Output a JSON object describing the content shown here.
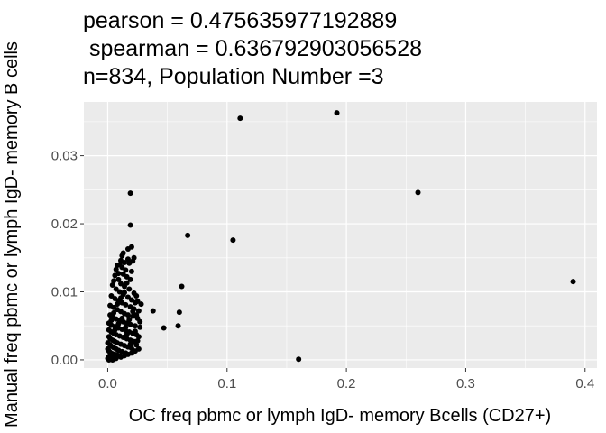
{
  "chart_data": {
    "type": "scatter",
    "title_lines": [
      "pearson = 0.475635977192889",
      " spearman = 0.636792903056528",
      "n=834, Population Number =3"
    ],
    "xlabel": "OC freq pbmc or lymph IgD- memory Bcells (CD27+)",
    "ylabel": "Manual freq pbmc or lymph IgD- memory B cells",
    "x_ticks": [
      "0.0",
      "0.1",
      "0.2",
      "0.3",
      "0.4"
    ],
    "y_ticks": [
      "0.00",
      "0.01",
      "0.02",
      "0.03"
    ],
    "xlim": [
      -0.02,
      0.41
    ],
    "ylim": [
      -0.0012,
      0.0379
    ],
    "grid": true,
    "panel_color": "#ebebeb",
    "grid_color": "#ffffff",
    "point_color": "#000000",
    "points": [
      [
        0.39,
        0.0115
      ],
      [
        0.26,
        0.0246
      ],
      [
        0.192,
        0.0363
      ],
      [
        0.16,
        0.0001
      ],
      [
        0.111,
        0.0355
      ],
      [
        0.105,
        0.0176
      ],
      [
        0.067,
        0.0183
      ],
      [
        0.062,
        0.0108
      ],
      [
        0.06,
        0.007
      ],
      [
        0.059,
        0.005
      ],
      [
        0.047,
        0.0047
      ],
      [
        0.038,
        0.0072
      ],
      [
        0.019,
        0.0245
      ],
      [
        0.019,
        0.0198
      ],
      [
        0.02,
        0.0166
      ],
      [
        0.017,
        0.0163
      ],
      [
        0.013,
        0.0157
      ],
      [
        0.012,
        0.0153
      ],
      [
        0.022,
        0.015
      ],
      [
        0.021,
        0.0145
      ],
      [
        0.018,
        0.0142
      ],
      [
        0.01,
        0.014
      ],
      [
        0.012,
        0.0136
      ],
      [
        0.015,
        0.0132
      ],
      [
        0.02,
        0.013
      ],
      [
        0.008,
        0.0139
      ],
      [
        0.013,
        0.0126
      ],
      [
        0.016,
        0.0122
      ],
      [
        0.019,
        0.0118
      ],
      [
        0.006,
        0.0124
      ],
      [
        0.009,
        0.0118
      ],
      [
        0.011,
        0.0112
      ],
      [
        0.014,
        0.0108
      ],
      [
        0.018,
        0.0104
      ],
      [
        0.022,
        0.0098
      ],
      [
        0.024,
        0.0094
      ],
      [
        0.004,
        0.011
      ],
      [
        0.007,
        0.0104
      ],
      [
        0.01,
        0.01
      ],
      [
        0.013,
        0.0096
      ],
      [
        0.017,
        0.0092
      ],
      [
        0.02,
        0.0088
      ],
      [
        0.023,
        0.0084
      ],
      [
        0.003,
        0.0094
      ],
      [
        0.006,
        0.009
      ],
      [
        0.009,
        0.0087
      ],
      [
        0.012,
        0.0084
      ],
      [
        0.015,
        0.0081
      ],
      [
        0.019,
        0.0078
      ],
      [
        0.022,
        0.0075
      ],
      [
        0.026,
        0.0072
      ],
      [
        0.002,
        0.008
      ],
      [
        0.005,
        0.0077
      ],
      [
        0.008,
        0.0074
      ],
      [
        0.011,
        0.0071
      ],
      [
        0.014,
        0.0068
      ],
      [
        0.017,
        0.0066
      ],
      [
        0.021,
        0.0064
      ],
      [
        0.025,
        0.0061
      ],
      [
        0.002,
        0.0066
      ],
      [
        0.004,
        0.0063
      ],
      [
        0.007,
        0.006
      ],
      [
        0.01,
        0.0058
      ],
      [
        0.013,
        0.0056
      ],
      [
        0.016,
        0.0054
      ],
      [
        0.019,
        0.0052
      ],
      [
        0.023,
        0.005
      ],
      [
        0.027,
        0.0048
      ],
      [
        0.001,
        0.0054
      ],
      [
        0.003,
        0.0051
      ],
      [
        0.006,
        0.0049
      ],
      [
        0.009,
        0.0047
      ],
      [
        0.012,
        0.0045
      ],
      [
        0.015,
        0.0043
      ],
      [
        0.018,
        0.0041
      ],
      [
        0.021,
        0.0039
      ],
      [
        0.024,
        0.0037
      ],
      [
        0.001,
        0.0044
      ],
      [
        0.003,
        0.0041
      ],
      [
        0.005,
        0.0039
      ],
      [
        0.007,
        0.0037
      ],
      [
        0.01,
        0.0035
      ],
      [
        0.013,
        0.0033
      ],
      [
        0.016,
        0.0031
      ],
      [
        0.019,
        0.0029
      ],
      [
        0.022,
        0.0027
      ],
      [
        0.001,
        0.0034
      ],
      [
        0.002,
        0.0031
      ],
      [
        0.004,
        0.0029
      ],
      [
        0.006,
        0.0027
      ],
      [
        0.008,
        0.0025
      ],
      [
        0.011,
        0.0023
      ],
      [
        0.014,
        0.0021
      ],
      [
        0.017,
        0.0019
      ],
      [
        0.02,
        0.0017
      ],
      [
        0.0,
        0.0025
      ],
      [
        0.002,
        0.0022
      ],
      [
        0.003,
        0.002
      ],
      [
        0.005,
        0.0018
      ],
      [
        0.007,
        0.0016
      ],
      [
        0.009,
        0.0014
      ],
      [
        0.012,
        0.0012
      ],
      [
        0.015,
        0.001
      ],
      [
        0.0,
        0.0016
      ],
      [
        0.001,
        0.0013
      ],
      [
        0.002,
        0.0011
      ],
      [
        0.004,
        0.0009
      ],
      [
        0.006,
        0.0008
      ],
      [
        0.008,
        0.0007
      ],
      [
        0.01,
        0.0006
      ],
      [
        0.001,
        0.0005
      ],
      [
        0.003,
        0.0004
      ],
      [
        0.005,
        0.0003
      ],
      [
        0.0,
        0.0002
      ],
      [
        0.002,
        0.0001
      ],
      [
        0.004,
        0.0
      ],
      [
        0.001,
        0.0
      ],
      [
        0.007,
        0.0002
      ],
      [
        0.011,
        0.0004
      ],
      [
        0.014,
        0.0006
      ],
      [
        0.017,
        0.0008
      ],
      [
        0.02,
        0.001
      ],
      [
        0.023,
        0.0013
      ],
      [
        0.026,
        0.0016
      ],
      [
        0.024,
        0.0022
      ],
      [
        0.025,
        0.0028
      ],
      [
        0.026,
        0.0034
      ],
      [
        0.023,
        0.0042
      ],
      [
        0.027,
        0.0056
      ],
      [
        0.024,
        0.0066
      ],
      [
        0.028,
        0.0082
      ],
      [
        0.025,
        0.0086
      ],
      [
        0.003,
        0.0058
      ],
      [
        0.005,
        0.0069
      ],
      [
        0.008,
        0.0082
      ],
      [
        0.011,
        0.0091
      ],
      [
        0.014,
        0.0099
      ],
      [
        0.016,
        0.0113
      ],
      [
        0.009,
        0.0127
      ],
      [
        0.014,
        0.0143
      ],
      [
        0.017,
        0.0148
      ],
      [
        0.011,
        0.0146
      ],
      [
        0.007,
        0.0133
      ],
      [
        0.005,
        0.0116
      ],
      [
        0.012,
        0.0061
      ],
      [
        0.015,
        0.0048
      ],
      [
        0.018,
        0.0059
      ],
      [
        0.021,
        0.0071
      ],
      [
        0.006,
        0.0044
      ],
      [
        0.009,
        0.0053
      ],
      [
        0.016,
        0.0037
      ],
      [
        0.019,
        0.0023
      ]
    ]
  }
}
